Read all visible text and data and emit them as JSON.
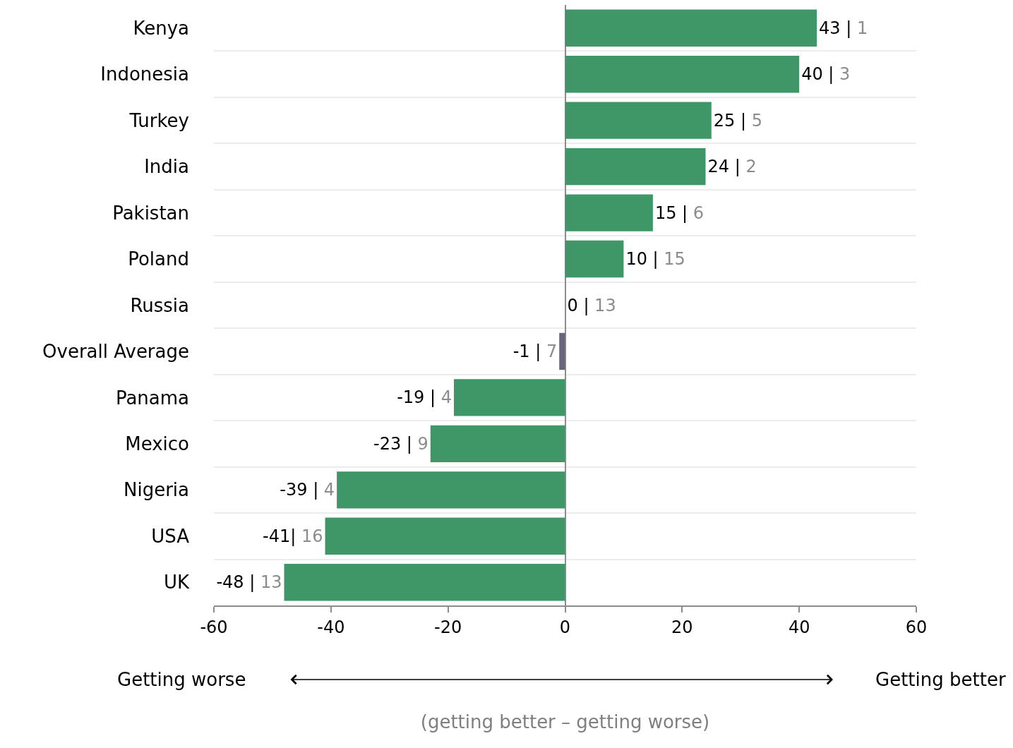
{
  "chart_data": {
    "type": "bar",
    "orientation": "horizontal",
    "categories": [
      "Kenya",
      "Indonesia",
      "Turkey",
      "India",
      "Pakistan",
      "Poland",
      "Russia",
      "Overall Average",
      "Panama",
      "Mexico",
      "Nigeria",
      "USA",
      "UK"
    ],
    "values": [
      43,
      40,
      25,
      24,
      15,
      10,
      0,
      -1,
      -19,
      -23,
      -39,
      -41,
      -48
    ],
    "colors": [
      "#3f9768",
      "#3f9768",
      "#3f9768",
      "#3f9768",
      "#3f9768",
      "#3f9768",
      "#3f9768",
      "#6a657d",
      "#3f9768",
      "#3f9768",
      "#3f9768",
      "#3f9768",
      "#3f9768"
    ],
    "value_labels": [
      "43 | 1",
      "40 | 3",
      "25 | 5",
      "24 | 2",
      "15 | 6",
      "10 | 15",
      "0 | 13",
      "-1 | 7",
      "-19 | 4",
      "-23 | 9",
      "-39 | 4",
      "-41| 16",
      "-48 | 13"
    ],
    "xlim": [
      -60,
      60
    ],
    "xticks": [
      -60,
      -40,
      -20,
      0,
      20,
      40,
      60
    ],
    "xlabel": "(getting better – getting worse)",
    "annotations": [
      "Getting worse",
      "Getting better"
    ],
    "grid": "y"
  }
}
